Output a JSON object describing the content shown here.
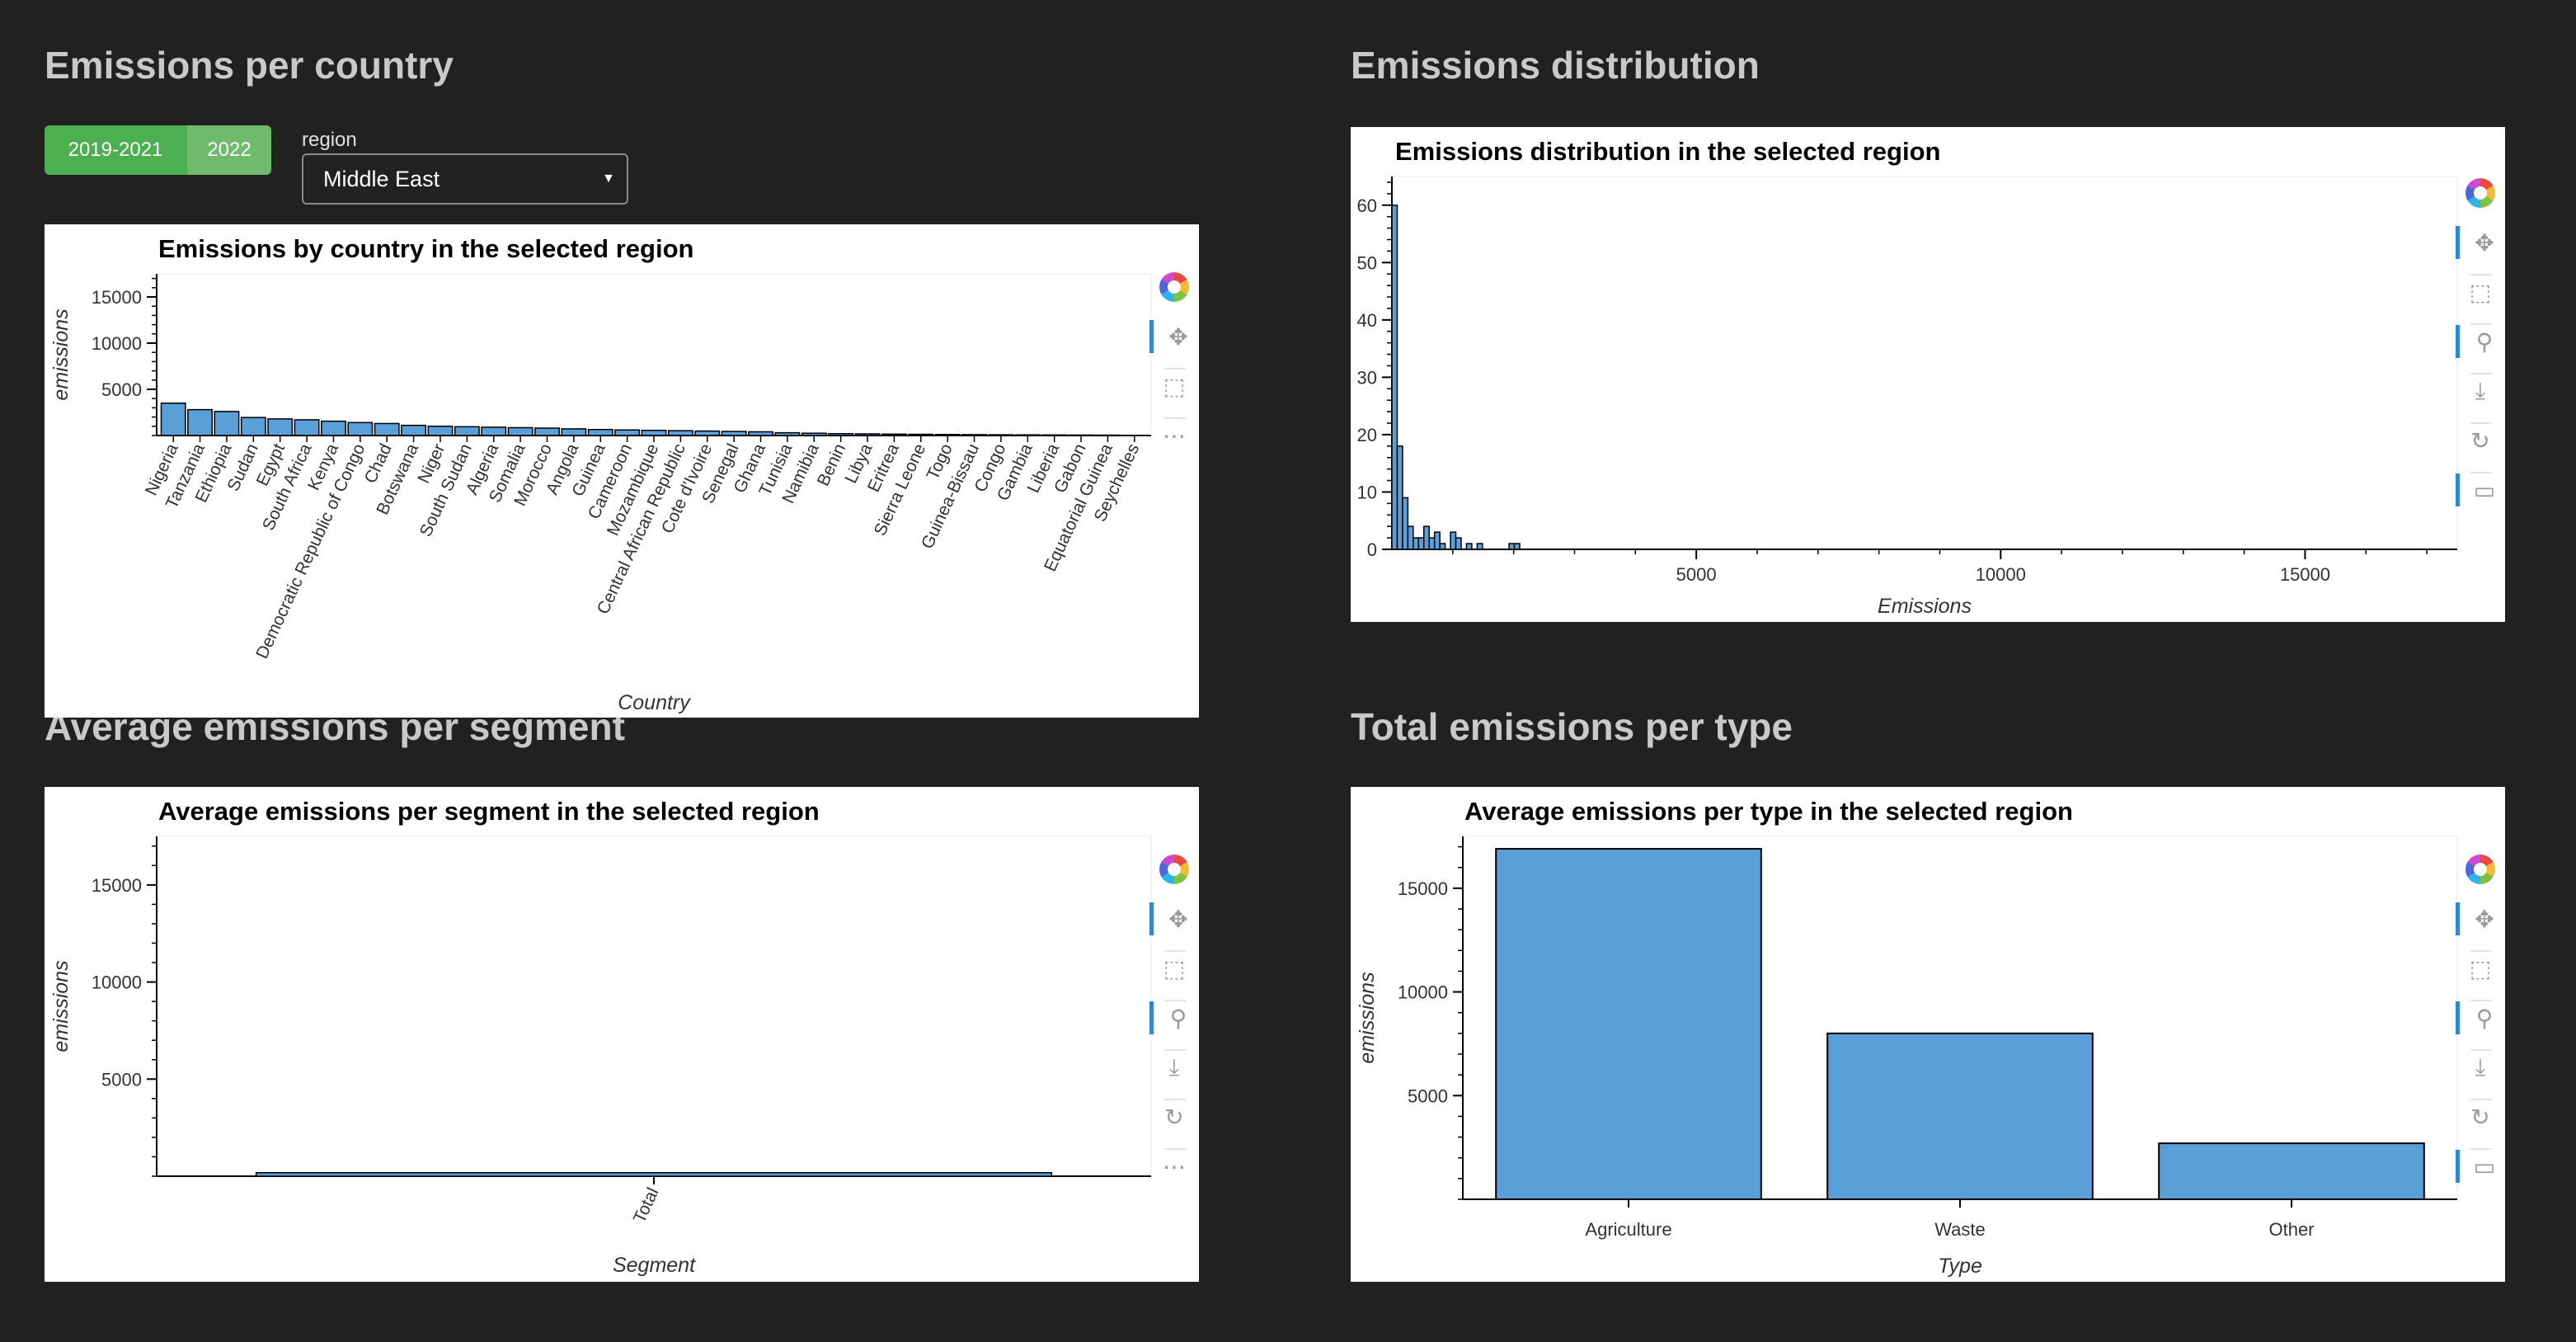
{
  "sections": {
    "country": "Emissions per country",
    "distribution": "Emissions distribution",
    "segment": "Average emissions per segment",
    "type": "Total emissions per type"
  },
  "controls": {
    "period_options": [
      "2019-2021",
      "2022"
    ],
    "period_selected": "2019-2021",
    "region_label": "region",
    "region_value": "Middle East"
  },
  "colors": {
    "bar": "#5a9fd8",
    "button_active": "#4caf50",
    "button_inactive": "#6dbb6b",
    "background": "#212121"
  },
  "toolbar_icons": [
    "bokeh-logo-icon",
    "pan-icon",
    "box-zoom-icon",
    "wheel-zoom-icon",
    "save-icon",
    "reset-icon",
    "hover-icon"
  ],
  "chart_data": [
    {
      "type": "bar",
      "title": "Emissions by country in the selected region",
      "xlabel": "Country",
      "ylabel": "emissions",
      "ylim": [
        0,
        17500
      ],
      "yticks": [
        5000,
        10000,
        15000
      ],
      "categories": [
        "Nigeria",
        "Tanzania",
        "Ethiopia",
        "Sudan",
        "Egypt",
        "South Africa",
        "Kenya",
        "Democratic Republic of Congo",
        "Chad",
        "Botswana",
        "Niger",
        "South Sudan",
        "Algeria",
        "Somalia",
        "Morocco",
        "Angola",
        "Guinea",
        "Cameroon",
        "Mozambique",
        "Central African Republic",
        "Cote d'Ivoire",
        "Senegal",
        "Ghana",
        "Tunisia",
        "Namibia",
        "Benin",
        "Libya",
        "Eritrea",
        "Sierra Leone",
        "Togo",
        "Guinea-Bissau",
        "Congo",
        "Gambia",
        "Liberia",
        "Gabon",
        "Equatorial Guinea",
        "Seychelles"
      ],
      "values": [
        3500,
        2800,
        2600,
        1950,
        1800,
        1700,
        1550,
        1400,
        1300,
        1100,
        1000,
        950,
        900,
        850,
        800,
        720,
        650,
        600,
        560,
        520,
        480,
        440,
        400,
        300,
        250,
        200,
        180,
        150,
        130,
        110,
        95,
        80,
        70,
        60,
        50,
        40,
        20
      ]
    },
    {
      "type": "bar",
      "title": "Emissions distribution in the selected region",
      "xlabel": "Emissions",
      "ylabel": "",
      "xlim": [
        0,
        17500
      ],
      "ylim": [
        0,
        65
      ],
      "xticks": [
        5000,
        10000,
        15000
      ],
      "yticks": [
        0,
        10,
        20,
        30,
        40,
        50,
        60
      ],
      "bin_width": 87.5,
      "bins": [
        0,
        87.5,
        175,
        262.5,
        350,
        437.5,
        525,
        612.5,
        700,
        787.5,
        875,
        962.5,
        1050,
        1137.5,
        1225,
        1312.5,
        1400,
        1487.5,
        1575,
        1662.5,
        1750,
        1837.5,
        1925,
        2012.5
      ],
      "counts": [
        60,
        18,
        9,
        4,
        2,
        2,
        4,
        2,
        3,
        1,
        0,
        3,
        2,
        0,
        1,
        0,
        1,
        0,
        0,
        0,
        0,
        0,
        1,
        1
      ]
    },
    {
      "type": "bar",
      "title": "Average emissions per segment in the selected region",
      "xlabel": "Segment",
      "ylabel": "emissions",
      "ylim": [
        0,
        17500
      ],
      "yticks": [
        5000,
        10000,
        15000
      ],
      "categories": [
        "Total"
      ],
      "values": [
        180
      ]
    },
    {
      "type": "bar",
      "title": "Average emissions per type in the selected region",
      "xlabel": "Type",
      "ylabel": "emissions",
      "ylim": [
        0,
        17500
      ],
      "yticks": [
        5000,
        10000,
        15000
      ],
      "categories": [
        "Agriculture",
        "Waste",
        "Other"
      ],
      "values": [
        16900,
        8000,
        2700
      ]
    }
  ]
}
